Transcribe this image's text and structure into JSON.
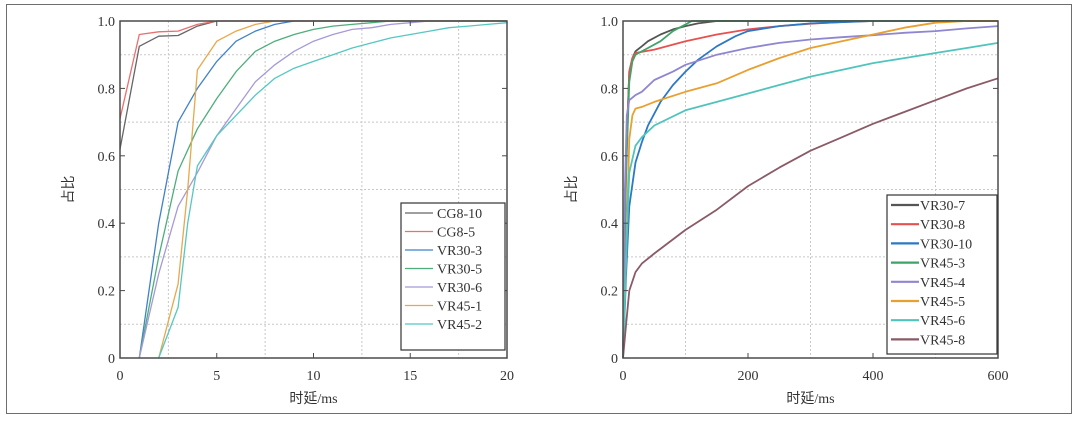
{
  "chart_data": [
    {
      "type": "line",
      "xlabel": "时延/ms",
      "ylabel": "占比",
      "xlim": [
        0,
        20
      ],
      "ylim": [
        0,
        1.0
      ],
      "xticks": [
        "0",
        "5",
        "10",
        "15",
        "20"
      ],
      "yticks": [
        "0",
        "0.2",
        "0.4",
        "0.6",
        "0.8",
        "1.0"
      ],
      "grid": true,
      "legend_position": "bottom-right",
      "series": [
        {
          "name": "CG8-10",
          "color": "#666666",
          "x": [
            0,
            1,
            2,
            3,
            4,
            5,
            6,
            20
          ],
          "y": [
            0.62,
            0.925,
            0.955,
            0.957,
            0.985,
            1.0,
            1.0,
            1.0
          ]
        },
        {
          "name": "CG8-5",
          "color": "#e8706f",
          "x": [
            0,
            1,
            2,
            3,
            4,
            5,
            6,
            20
          ],
          "y": [
            0.71,
            0.96,
            0.968,
            0.97,
            0.99,
            1.0,
            1.0,
            1.0
          ]
        },
        {
          "name": "VR30-3",
          "color": "#3f82c8",
          "x": [
            1,
            2,
            3,
            4,
            5,
            6,
            7,
            8,
            9,
            10,
            20
          ],
          "y": [
            0,
            0.4,
            0.7,
            0.8,
            0.88,
            0.94,
            0.97,
            0.99,
            1.0,
            1.0,
            1.0
          ]
        },
        {
          "name": "VR30-5",
          "color": "#4dae7c",
          "x": [
            1,
            2,
            3,
            4,
            5,
            6,
            7,
            8,
            9,
            10,
            11,
            12,
            13,
            14,
            20
          ],
          "y": [
            0,
            0.3,
            0.555,
            0.68,
            0.77,
            0.85,
            0.91,
            0.94,
            0.96,
            0.975,
            0.985,
            0.99,
            0.995,
            1.0,
            1.0
          ]
        },
        {
          "name": "VR30-6",
          "color": "#a899d8",
          "x": [
            1,
            2,
            3,
            4,
            5,
            6,
            7,
            8,
            9,
            10,
            11,
            12,
            13,
            14,
            15,
            16,
            20
          ],
          "y": [
            0,
            0.25,
            0.45,
            0.55,
            0.66,
            0.74,
            0.82,
            0.87,
            0.91,
            0.94,
            0.96,
            0.975,
            0.98,
            0.99,
            0.995,
            1.0,
            1.0
          ]
        },
        {
          "name": "VR45-1",
          "color": "#e8a84c",
          "x": [
            2,
            3,
            3.5,
            4,
            5,
            6,
            7,
            8,
            20
          ],
          "y": [
            0,
            0.22,
            0.5,
            0.855,
            0.94,
            0.97,
            0.99,
            1.0,
            1.0
          ]
        },
        {
          "name": "VR45-2",
          "color": "#55c7c2",
          "x": [
            2,
            3,
            3.5,
            4,
            5,
            6,
            7,
            8,
            9,
            10,
            11,
            12,
            13,
            14,
            15,
            16,
            17,
            18,
            19,
            20
          ],
          "y": [
            0,
            0.15,
            0.4,
            0.57,
            0.66,
            0.72,
            0.78,
            0.83,
            0.86,
            0.88,
            0.9,
            0.92,
            0.935,
            0.95,
            0.96,
            0.97,
            0.98,
            0.985,
            0.99,
            0.995
          ]
        }
      ]
    },
    {
      "type": "line",
      "xlabel": "时延/ms",
      "ylabel": "占比",
      "xlim": [
        0,
        600
      ],
      "ylim": [
        0,
        1.0
      ],
      "xticks": [
        "0",
        "200",
        "400",
        "600"
      ],
      "yticks": [
        "0",
        "0.2",
        "0.4",
        "0.6",
        "0.8",
        "1.0"
      ],
      "grid": true,
      "legend_position": "bottom-right",
      "series": [
        {
          "name": "VR30-7",
          "color": "#555555",
          "x": [
            0,
            5,
            10,
            15,
            20,
            30,
            40,
            60,
            80,
            100,
            120,
            150,
            180,
            600
          ],
          "y": [
            0,
            0.6,
            0.85,
            0.89,
            0.91,
            0.925,
            0.94,
            0.96,
            0.975,
            0.985,
            0.993,
            1.0,
            1.0,
            1.0
          ]
        },
        {
          "name": "VR30-8",
          "color": "#e8504f",
          "x": [
            0,
            5,
            10,
            15,
            20,
            50,
            100,
            150,
            200,
            250,
            300,
            350,
            400,
            600
          ],
          "y": [
            0,
            0.6,
            0.85,
            0.89,
            0.905,
            0.915,
            0.94,
            0.96,
            0.975,
            0.985,
            0.992,
            0.997,
            1.0,
            1.0
          ]
        },
        {
          "name": "VR30-10",
          "color": "#2c78c4",
          "x": [
            0,
            5,
            10,
            20,
            30,
            40,
            60,
            80,
            100,
            120,
            150,
            180,
            200,
            250,
            300,
            400,
            600
          ],
          "y": [
            0,
            0.25,
            0.45,
            0.58,
            0.64,
            0.69,
            0.76,
            0.81,
            0.85,
            0.885,
            0.925,
            0.955,
            0.97,
            0.985,
            0.993,
            1.0,
            1.0
          ]
        },
        {
          "name": "VR45-3",
          "color": "#3fa468",
          "x": [
            0,
            5,
            10,
            15,
            20,
            40,
            60,
            80,
            100,
            110,
            600
          ],
          "y": [
            0,
            0.55,
            0.82,
            0.88,
            0.9,
            0.92,
            0.94,
            0.97,
            0.99,
            1.0,
            1.0
          ]
        },
        {
          "name": "VR45-4",
          "color": "#8f86d0",
          "x": [
            0,
            3,
            6,
            10,
            20,
            30,
            50,
            80,
            100,
            150,
            200,
            250,
            300,
            350,
            400,
            450,
            500,
            550,
            600
          ],
          "y": [
            0,
            0.5,
            0.72,
            0.765,
            0.78,
            0.79,
            0.825,
            0.85,
            0.87,
            0.9,
            0.92,
            0.935,
            0.945,
            0.952,
            0.958,
            0.965,
            0.97,
            0.978,
            0.985
          ]
        },
        {
          "name": "VR45-5",
          "color": "#e8a030",
          "x": [
            0,
            5,
            10,
            15,
            20,
            30,
            50,
            100,
            150,
            200,
            250,
            300,
            350,
            400,
            450,
            500,
            550,
            600
          ],
          "y": [
            0,
            0.3,
            0.65,
            0.72,
            0.74,
            0.745,
            0.76,
            0.79,
            0.815,
            0.855,
            0.89,
            0.92,
            0.94,
            0.96,
            0.98,
            0.995,
            1.0,
            1.0
          ]
        },
        {
          "name": "VR45-6",
          "color": "#4fc4bd",
          "x": [
            0,
            5,
            10,
            20,
            30,
            50,
            100,
            150,
            200,
            250,
            300,
            350,
            400,
            450,
            500,
            550,
            600
          ],
          "y": [
            0,
            0.3,
            0.55,
            0.63,
            0.655,
            0.69,
            0.735,
            0.76,
            0.785,
            0.81,
            0.835,
            0.855,
            0.875,
            0.89,
            0.905,
            0.92,
            0.935
          ]
        },
        {
          "name": "VR45-8",
          "color": "#8a5a66",
          "x": [
            0,
            5,
            10,
            20,
            30,
            50,
            100,
            150,
            200,
            250,
            300,
            350,
            400,
            450,
            500,
            550,
            600
          ],
          "y": [
            0,
            0.1,
            0.2,
            0.255,
            0.28,
            0.31,
            0.38,
            0.44,
            0.51,
            0.565,
            0.615,
            0.655,
            0.695,
            0.73,
            0.765,
            0.8,
            0.83
          ]
        }
      ]
    }
  ]
}
